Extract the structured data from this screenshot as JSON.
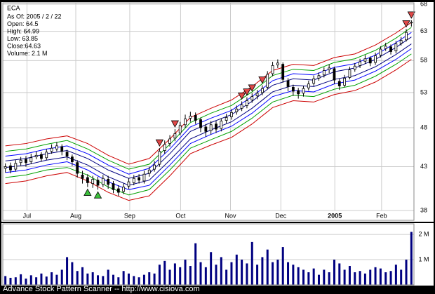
{
  "info": {
    "symbol": "ECA",
    "lines": [
      "As Of: 2005 / 2 / 22",
      "Open: 64.5",
      "High: 64.99",
      "Low: 63.85",
      "Close:64.63",
      "Volume: 2.1 M"
    ]
  },
  "footer": "Advance Stock Pattern Scanner -- http://www.cisiova.com",
  "chart_data": [
    {
      "type": "candlestick",
      "ylog": true,
      "grid": true,
      "x": [
        0,
        1,
        2,
        3,
        4,
        5,
        6,
        7,
        8,
        9,
        10,
        11,
        12,
        13,
        14,
        15,
        16,
        17,
        18,
        19,
        20,
        21,
        22,
        23,
        24,
        25,
        26,
        27,
        28,
        29,
        30,
        31,
        32,
        33,
        34,
        35,
        36,
        37,
        38,
        39,
        40,
        41,
        42,
        43,
        44,
        45,
        46,
        47,
        48,
        49,
        50,
        51,
        52,
        53,
        54,
        55,
        56,
        57,
        58,
        59,
        60,
        61,
        62,
        63,
        64,
        65,
        66,
        67,
        68,
        69,
        70,
        71,
        72,
        73,
        74,
        75,
        76,
        77,
        78,
        79
      ],
      "open": [
        42.8,
        43.1,
        42.7,
        43.5,
        43.9,
        43.6,
        44.2,
        44.5,
        44.1,
        44.9,
        45.2,
        45.5,
        44.8,
        44.2,
        43.5,
        42.0,
        41.7,
        41.0,
        41.4,
        40.9,
        41.5,
        41.0,
        40.4,
        40.1,
        40.7,
        41.1,
        41.7,
        41.3,
        42.2,
        42.7,
        43.3,
        45.0,
        45.9,
        46.6,
        47.3,
        48.4,
        49.3,
        49.7,
        49.1,
        48.1,
        47.6,
        48.5,
        47.9,
        49.0,
        49.5,
        50.2,
        50.7,
        51.1,
        51.9,
        52.5,
        53.0,
        53.8,
        55.9,
        57.3,
        57.4,
        54.8,
        53.8,
        53.3,
        52.9,
        53.7,
        54.4,
        55.2,
        55.7,
        56.5,
        56.7,
        54.7,
        54.1,
        55.3,
        56.6,
        57.2,
        57.9,
        58.4,
        57.7,
        58.9,
        60.0,
        60.3,
        59.6,
        60.9,
        61.5,
        64.5
      ],
      "high": [
        43.4,
        43.5,
        43.8,
        44.2,
        44.3,
        44.6,
        44.9,
        44.8,
        45.2,
        45.8,
        46.1,
        45.8,
        45.1,
        44.5,
        43.8,
        42.5,
        42.1,
        41.9,
        41.8,
        42.0,
        41.9,
        41.3,
        40.8,
        41.0,
        41.6,
        42.0,
        42.1,
        42.5,
        43.0,
        43.7,
        45.3,
        46.3,
        47.0,
        47.8,
        48.8,
        49.8,
        50.2,
        50.1,
        49.4,
        48.5,
        48.9,
        48.9,
        49.3,
        49.9,
        50.6,
        51.1,
        51.7,
        52.3,
        52.9,
        53.4,
        54.1,
        56.3,
        57.8,
        58.2,
        57.7,
        55.2,
        54.2,
        53.7,
        54.0,
        54.8,
        55.6,
        56.1,
        56.9,
        57.4,
        57.0,
        55.1,
        55.7,
        57.0,
        57.6,
        58.3,
        58.9,
        58.7,
        59.3,
        60.4,
        61.0,
        60.7,
        61.3,
        62.0,
        63.4,
        64.99
      ],
      "low": [
        42.3,
        42.2,
        42.4,
        43.1,
        43.0,
        43.3,
        43.9,
        43.6,
        43.8,
        44.6,
        44.9,
        44.4,
        43.8,
        43.1,
        41.7,
        41.0,
        40.6,
        40.5,
        40.3,
        40.6,
        40.4,
        39.9,
        39.6,
        39.8,
        40.4,
        40.8,
        41.0,
        41.0,
        41.8,
        42.4,
        43.0,
        44.6,
        45.5,
        46.2,
        47.0,
        48.0,
        48.8,
        48.5,
        47.4,
        46.8,
        47.1,
        47.3,
        47.5,
        48.6,
        49.1,
        49.8,
        50.3,
        50.7,
        51.5,
        52.0,
        52.6,
        53.5,
        55.5,
        56.8,
        54.5,
        53.2,
        52.5,
        52.1,
        52.4,
        53.3,
        54.0,
        54.8,
        55.3,
        56.0,
        54.3,
        53.4,
        53.8,
        55.0,
        56.2,
        56.8,
        57.5,
        57.1,
        57.3,
        58.5,
        59.6,
        59.0,
        59.2,
        60.5,
        61.2,
        63.85
      ],
      "close": [
        43.0,
        42.6,
        43.4,
        43.8,
        43.5,
        44.1,
        44.4,
        44.0,
        44.8,
        45.3,
        45.6,
        44.9,
        44.3,
        43.6,
        42.2,
        41.6,
        41.1,
        41.5,
        40.8,
        41.6,
        40.9,
        40.3,
        40.0,
        40.6,
        41.2,
        41.6,
        41.4,
        42.1,
        42.6,
        43.2,
        44.9,
        45.8,
        46.5,
        47.2,
        48.3,
        49.2,
        49.6,
        49.0,
        48.0,
        47.5,
        48.4,
        47.8,
        48.9,
        49.4,
        50.1,
        50.6,
        51.2,
        51.8,
        52.4,
        52.9,
        53.6,
        55.8,
        57.2,
        57.6,
        55.0,
        53.9,
        53.2,
        52.8,
        53.6,
        54.3,
        55.1,
        55.6,
        56.4,
        56.8,
        54.9,
        54.0,
        55.2,
        56.5,
        57.1,
        57.8,
        58.3,
        57.6,
        58.8,
        59.9,
        60.4,
        59.5,
        60.8,
        61.4,
        62.8,
        64.63
      ],
      "band_x": [
        0,
        4,
        8,
        12,
        16,
        20,
        24,
        28,
        32,
        36,
        40,
        44,
        48,
        52,
        56,
        60,
        64,
        68,
        72,
        76,
        79
      ],
      "bands": [
        {
          "color": "#cc0000",
          "values": [
            45.6,
            45.9,
            46.5,
            46.9,
            45.9,
            44.4,
            43.3,
            44.0,
            46.5,
            49.4,
            50.7,
            51.9,
            53.9,
            56.4,
            57.4,
            57.2,
            58.5,
            59.1,
            60.6,
            62.7,
            64.6
          ]
        },
        {
          "color": "#00a000",
          "values": [
            44.9,
            45.2,
            45.8,
            46.3,
            45.2,
            43.8,
            42.7,
            43.3,
            45.8,
            48.7,
            50.0,
            51.1,
            53.1,
            55.6,
            56.6,
            56.4,
            57.7,
            58.3,
            59.7,
            61.8,
            63.7
          ]
        },
        {
          "color": "#0000ff",
          "values": [
            44.3,
            44.6,
            45.2,
            45.6,
            44.6,
            43.2,
            42.1,
            42.8,
            45.2,
            48.1,
            49.3,
            50.4,
            52.4,
            54.8,
            55.9,
            55.7,
            56.9,
            57.5,
            58.9,
            61.0,
            62.8
          ]
        },
        {
          "color": "#000080",
          "values": [
            43.7,
            44.0,
            44.6,
            45.0,
            44.0,
            42.6,
            41.6,
            42.2,
            44.6,
            47.5,
            48.7,
            49.8,
            51.7,
            54.1,
            55.1,
            54.9,
            56.2,
            56.8,
            58.2,
            60.2,
            62.0
          ]
        },
        {
          "color": "#000080",
          "values": [
            42.9,
            43.2,
            43.8,
            44.2,
            43.2,
            41.8,
            40.8,
            41.4,
            43.8,
            46.5,
            47.7,
            48.8,
            50.7,
            53.1,
            54.1,
            53.9,
            55.0,
            55.6,
            57.0,
            59.0,
            60.8
          ]
        },
        {
          "color": "#0000ff",
          "values": [
            42.3,
            42.6,
            43.2,
            43.6,
            42.6,
            41.2,
            40.3,
            40.8,
            43.2,
            45.9,
            47.1,
            48.2,
            50.0,
            52.4,
            53.3,
            53.1,
            54.3,
            54.9,
            56.3,
            58.2,
            60.0
          ]
        },
        {
          "color": "#00a000",
          "values": [
            41.7,
            42.0,
            42.6,
            42.9,
            42.0,
            40.6,
            39.7,
            40.3,
            42.6,
            45.3,
            46.4,
            47.5,
            49.3,
            51.6,
            52.6,
            52.4,
            53.5,
            54.1,
            55.5,
            57.4,
            59.1
          ]
        },
        {
          "color": "#cc0000",
          "values": [
            41.0,
            41.3,
            41.9,
            42.3,
            41.3,
            40.0,
            39.1,
            39.6,
            41.9,
            44.6,
            45.7,
            46.7,
            48.5,
            50.8,
            51.8,
            51.6,
            52.7,
            53.3,
            54.6,
            56.5,
            58.2
          ]
        }
      ],
      "sell_signals": [
        30,
        33,
        46,
        47,
        48,
        50,
        78,
        79
      ],
      "buy_signals": [
        16,
        18
      ],
      "sell_color": "#e04848",
      "buy_color": "#3cc03c",
      "xlim": [
        -0.5,
        79.5
      ],
      "xticks": [
        {
          "value": 4.2,
          "label": "Jul"
        },
        {
          "value": 13.7,
          "label": "Aug"
        },
        {
          "value": 24.2,
          "label": "Sep"
        },
        {
          "value": 34.1,
          "label": "Oct"
        },
        {
          "value": 43.8,
          "label": "Nov"
        },
        {
          "value": 53.6,
          "label": "Dec"
        },
        {
          "value": 64.1,
          "label": "2005"
        },
        {
          "value": 73.2,
          "label": "Feb"
        }
      ],
      "ylim": [
        36.96,
        68.27
      ],
      "yticks": [
        38,
        43,
        48,
        53,
        58,
        63,
        68
      ]
    },
    {
      "type": "bar",
      "color": "#000080",
      "grid": true,
      "values": [
        0.35,
        0.28,
        0.3,
        0.42,
        0.25,
        0.38,
        0.3,
        0.45,
        0.33,
        0.5,
        0.4,
        0.6,
        1.1,
        0.9,
        0.55,
        0.7,
        0.45,
        0.5,
        0.38,
        0.35,
        0.6,
        0.4,
        0.3,
        0.55,
        0.45,
        0.35,
        0.3,
        0.4,
        0.5,
        0.45,
        0.8,
        0.95,
        0.6,
        0.85,
        0.7,
        1.0,
        0.75,
        1.65,
        0.9,
        0.7,
        1.3,
        0.8,
        1.1,
        0.6,
        0.9,
        1.2,
        1.0,
        0.85,
        1.7,
        0.8,
        1.1,
        1.4,
        0.9,
        1.0,
        1.5,
        0.9,
        0.8,
        0.7,
        0.6,
        0.5,
        0.65,
        0.4,
        0.6,
        0.5,
        1.0,
        0.85,
        0.6,
        0.75,
        0.5,
        0.55,
        0.45,
        0.6,
        0.7,
        0.65,
        0.5,
        0.55,
        0.8,
        0.6,
        1.0,
        2.1
      ],
      "ylim": [
        0,
        2.42
      ],
      "yticks": [
        {
          "value": 1,
          "label": "1 M"
        },
        {
          "value": 2,
          "label": "2 M"
        }
      ]
    }
  ]
}
